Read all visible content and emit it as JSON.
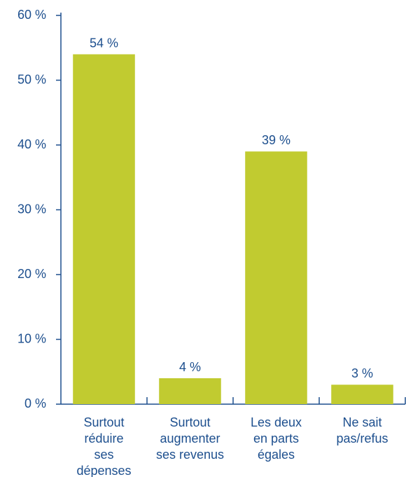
{
  "chart_data": {
    "type": "bar",
    "categories": [
      [
        "Surtout",
        "réduire",
        "ses",
        "dépenses"
      ],
      [
        "Surtout",
        "augmenter",
        "ses revenus"
      ],
      [
        "Les deux",
        "en parts",
        "égales"
      ],
      [
        "Ne sait",
        "pas/refus"
      ]
    ],
    "values": [
      54,
      4,
      39,
      3
    ],
    "value_labels": [
      "54 %",
      "4 %",
      "39 %",
      "3 %"
    ],
    "color": "#c1cb30",
    "ylim": [
      0,
      60
    ],
    "yticks": [
      {
        "value": 0,
        "label": "0 %"
      },
      {
        "value": 10,
        "label": "10 %"
      },
      {
        "value": 20,
        "label": "20 %"
      },
      {
        "value": 30,
        "label": "30 %"
      },
      {
        "value": 40,
        "label": "40 %"
      },
      {
        "value": 50,
        "label": "50 %"
      },
      {
        "value": 60,
        "label": "60 %"
      }
    ],
    "grid": false
  }
}
